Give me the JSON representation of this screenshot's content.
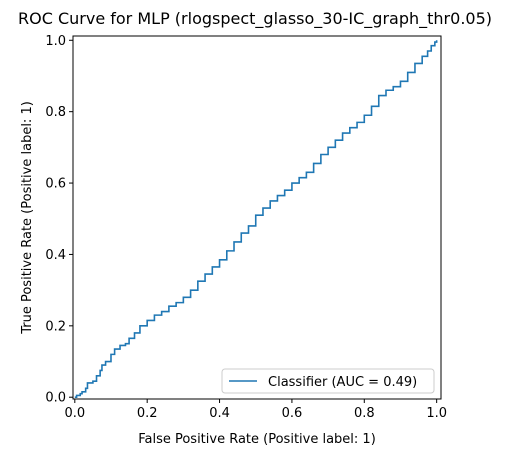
{
  "chart_data": {
    "type": "line",
    "title": "ROC Curve for MLP (rlogspect_glasso_30-IC_graph_thr0.05)",
    "xlabel": "False Positive Rate (Positive label: 1)",
    "ylabel": "True Positive Rate (Positive label: 1)",
    "xlim": [
      0,
      1
    ],
    "ylim": [
      0,
      1
    ],
    "xticks": [
      "0.0",
      "0.2",
      "0.4",
      "0.6",
      "0.8",
      "1.0"
    ],
    "yticks": [
      "0.0",
      "0.2",
      "0.4",
      "0.6",
      "0.8",
      "1.0"
    ],
    "grid": false,
    "legend_position": "lower-right",
    "series": [
      {
        "name": "Classifier (AUC = 0.49)",
        "color": "#1f77b4",
        "x": [
          0.0,
          0.005,
          0.015,
          0.02,
          0.03,
          0.035,
          0.045,
          0.05,
          0.06,
          0.07,
          0.075,
          0.085,
          0.1,
          0.11,
          0.125,
          0.14,
          0.15,
          0.165,
          0.18,
          0.2,
          0.22,
          0.24,
          0.26,
          0.28,
          0.3,
          0.32,
          0.34,
          0.36,
          0.38,
          0.4,
          0.42,
          0.44,
          0.46,
          0.48,
          0.5,
          0.52,
          0.54,
          0.56,
          0.58,
          0.6,
          0.62,
          0.64,
          0.66,
          0.68,
          0.7,
          0.72,
          0.74,
          0.76,
          0.78,
          0.8,
          0.82,
          0.84,
          0.86,
          0.88,
          0.9,
          0.92,
          0.94,
          0.96,
          0.975,
          0.985,
          0.995,
          1.0
        ],
        "y": [
          0.0,
          0.005,
          0.01,
          0.015,
          0.025,
          0.04,
          0.04,
          0.045,
          0.06,
          0.075,
          0.09,
          0.1,
          0.12,
          0.135,
          0.145,
          0.15,
          0.165,
          0.18,
          0.2,
          0.215,
          0.23,
          0.24,
          0.255,
          0.265,
          0.28,
          0.3,
          0.325,
          0.345,
          0.365,
          0.385,
          0.41,
          0.435,
          0.46,
          0.48,
          0.51,
          0.53,
          0.55,
          0.565,
          0.58,
          0.6,
          0.615,
          0.63,
          0.655,
          0.68,
          0.7,
          0.72,
          0.74,
          0.755,
          0.77,
          0.79,
          0.815,
          0.845,
          0.86,
          0.87,
          0.885,
          0.91,
          0.935,
          0.955,
          0.97,
          0.985,
          0.995,
          1.0
        ]
      }
    ]
  }
}
